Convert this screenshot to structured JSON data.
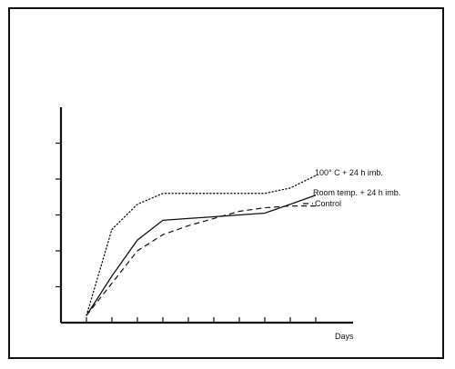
{
  "chart_data": {
    "type": "line",
    "title": "",
    "xlabel": "Days",
    "ylabel": "",
    "x_ticks": [
      1,
      2,
      3,
      4,
      5,
      6,
      7,
      8,
      9,
      10
    ],
    "y_ticks": [
      1,
      2,
      3,
      4,
      5
    ],
    "xlim": [
      0,
      11
    ],
    "ylim": [
      0,
      6
    ],
    "grid": false,
    "series": [
      {
        "name": "100° C + 24 h imb.",
        "style": "dotted",
        "x": [
          1,
          2,
          3,
          4,
          5,
          6,
          7,
          8,
          9,
          10
        ],
        "y": [
          0.2,
          2.6,
          3.3,
          3.6,
          3.6,
          3.6,
          3.6,
          3.6,
          3.75,
          4.1
        ]
      },
      {
        "name": "Room temp. + 24 h imb.",
        "style": "solid",
        "x": [
          1,
          2,
          3,
          4,
          5,
          6,
          7,
          8,
          9,
          10
        ],
        "y": [
          0.2,
          1.3,
          2.3,
          2.85,
          2.9,
          2.95,
          3.0,
          3.05,
          3.3,
          3.55
        ]
      },
      {
        "name": "Control",
        "style": "dashed",
        "x": [
          1,
          2,
          3,
          4,
          5,
          6,
          7,
          8,
          9,
          10
        ],
        "y": [
          0.2,
          1.1,
          2.0,
          2.45,
          2.7,
          2.9,
          3.1,
          3.2,
          3.25,
          3.25
        ]
      }
    ]
  }
}
